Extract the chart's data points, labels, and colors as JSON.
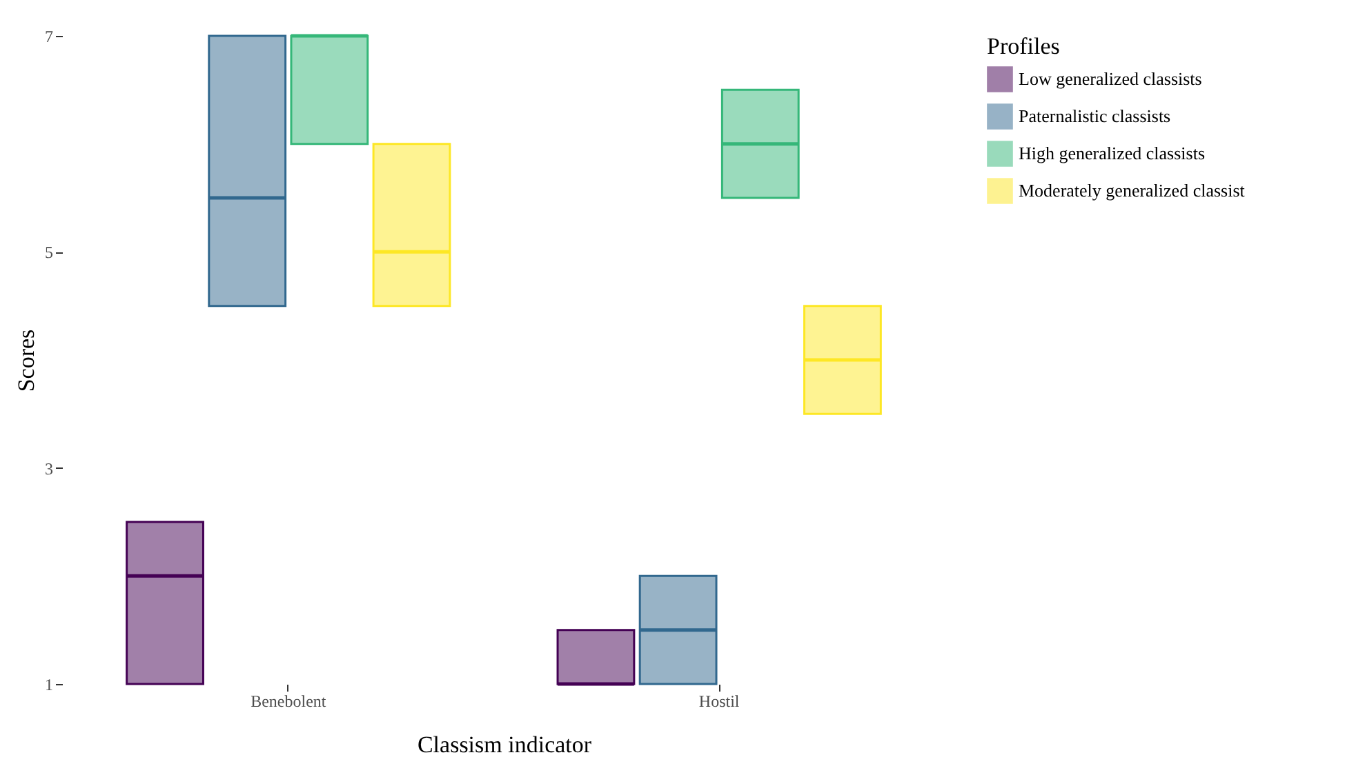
{
  "chart_data": {
    "type": "box",
    "xlabel": "Classism indicator",
    "ylabel": "Scores",
    "legend_title": "Profiles",
    "categories": [
      "Benebolent",
      "Hostil"
    ],
    "series": [
      {
        "name": "Low generalized classists",
        "color": "#440154",
        "boxes": [
          {
            "low": 1,
            "q1": 1,
            "median": 2,
            "q3": 2.5,
            "high": 2.5
          },
          {
            "low": 1,
            "q1": 1,
            "median": 1,
            "q3": 1.5,
            "high": 1.5
          }
        ]
      },
      {
        "name": "Paternalistic classists",
        "color": "#31688e",
        "boxes": [
          {
            "low": 4.5,
            "q1": 4.5,
            "median": 5.5,
            "q3": 7,
            "high": 7
          },
          {
            "low": 1,
            "q1": 1,
            "median": 1.5,
            "q3": 2,
            "high": 2
          }
        ]
      },
      {
        "name": "High generalized classists",
        "color": "#35b779",
        "boxes": [
          {
            "low": 6,
            "q1": 6,
            "median": 7,
            "q3": 7,
            "high": 7
          },
          {
            "low": 5.5,
            "q1": 5.5,
            "median": 6,
            "q3": 6.5,
            "high": 6.5
          }
        ]
      },
      {
        "name": "Moderately generalized classist",
        "color": "#fde725",
        "boxes": [
          {
            "low": 4.5,
            "q1": 4.5,
            "median": 5,
            "q3": 6,
            "high": 6
          },
          {
            "low": 3.5,
            "q1": 3.5,
            "median": 4,
            "q3": 4.5,
            "high": 4.5
          }
        ]
      }
    ],
    "ylim": [
      1,
      7
    ],
    "yticks": [
      1,
      3,
      5,
      7
    ],
    "grid": false,
    "legend": "right"
  }
}
